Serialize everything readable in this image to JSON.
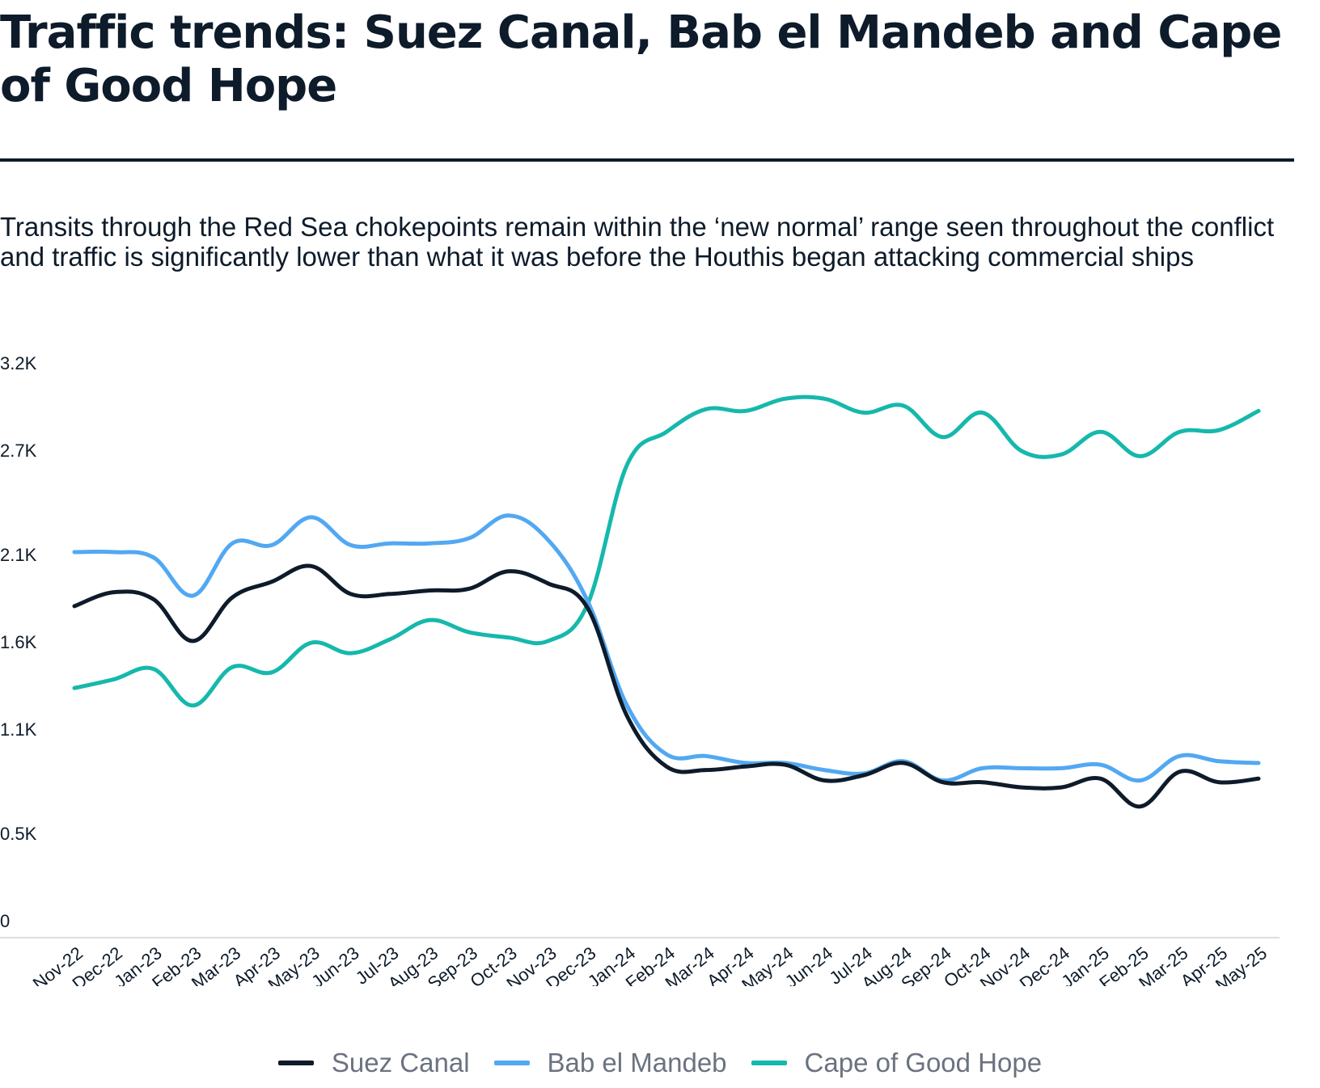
{
  "title": "Traffic trends: Suez Canal, Bab el Mandeb and Cape of Good Hope",
  "subtitle": "Transits through the Red Sea chokepoints remain within the ‘new normal’ range seen throughout the conflict and traffic is significantly lower than what it was before the Houthis began attacking commercial ships",
  "chart_data": {
    "type": "line",
    "title": "Traffic trends: Suez Canal, Bab el Mandeb and Cape of Good Hope",
    "xlabel": "",
    "ylabel": "",
    "categories": [
      "Nov-22",
      "Dec-22",
      "Jan-23",
      "Feb-23",
      "Mar-23",
      "Apr-23",
      "May-23",
      "Jun-23",
      "Jul-23",
      "Aug-23",
      "Sep-23",
      "Oct-23",
      "Nov-23",
      "Dec-23",
      "Jan-24",
      "Feb-24",
      "Mar-24",
      "Apr-24",
      "May-24",
      "Jun-24",
      "Jul-24",
      "Aug-24",
      "Sep-24",
      "Oct-24",
      "Nov-24",
      "Dec-24",
      "Jan-25",
      "Feb-25",
      "Mar-25",
      "Apr-25",
      "May-25"
    ],
    "ylim": [
      0,
      3200
    ],
    "yticks": [
      0,
      500,
      1100,
      1600,
      2100,
      2700,
      3200
    ],
    "ytick_labels": [
      "0",
      "0.5K",
      "1.1K",
      "1.6K",
      "2.1K",
      "2.7K",
      "3.2K"
    ],
    "grid": false,
    "legend_position": "bottom",
    "series": [
      {
        "name": "Suez Canal",
        "color": "#0d1b2a",
        "values": [
          1800,
          1880,
          1840,
          1600,
          1850,
          1940,
          2030,
          1870,
          1870,
          1890,
          1900,
          2000,
          1930,
          1790,
          1170,
          880,
          860,
          880,
          890,
          800,
          830,
          900,
          790,
          790,
          760,
          760,
          810,
          650,
          850,
          790,
          810
        ]
      },
      {
        "name": "Bab el Mandeb",
        "color": "#52a8f2",
        "values": [
          2110,
          2110,
          2080,
          1860,
          2160,
          2150,
          2310,
          2150,
          2160,
          2160,
          2190,
          2320,
          2180,
          1830,
          1230,
          950,
          940,
          900,
          900,
          860,
          840,
          910,
          800,
          870,
          870,
          870,
          890,
          800,
          940,
          910,
          900
        ]
      },
      {
        "name": "Cape of Good Hope",
        "color": "#16b8ac",
        "values": [
          1330,
          1380,
          1440,
          1230,
          1450,
          1420,
          1590,
          1530,
          1610,
          1720,
          1650,
          1620,
          1600,
          1810,
          2610,
          2800,
          2930,
          2920,
          2990,
          2990,
          2910,
          2950,
          2770,
          2910,
          2690,
          2670,
          2800,
          2660,
          2800,
          2810,
          2920
        ]
      }
    ]
  }
}
